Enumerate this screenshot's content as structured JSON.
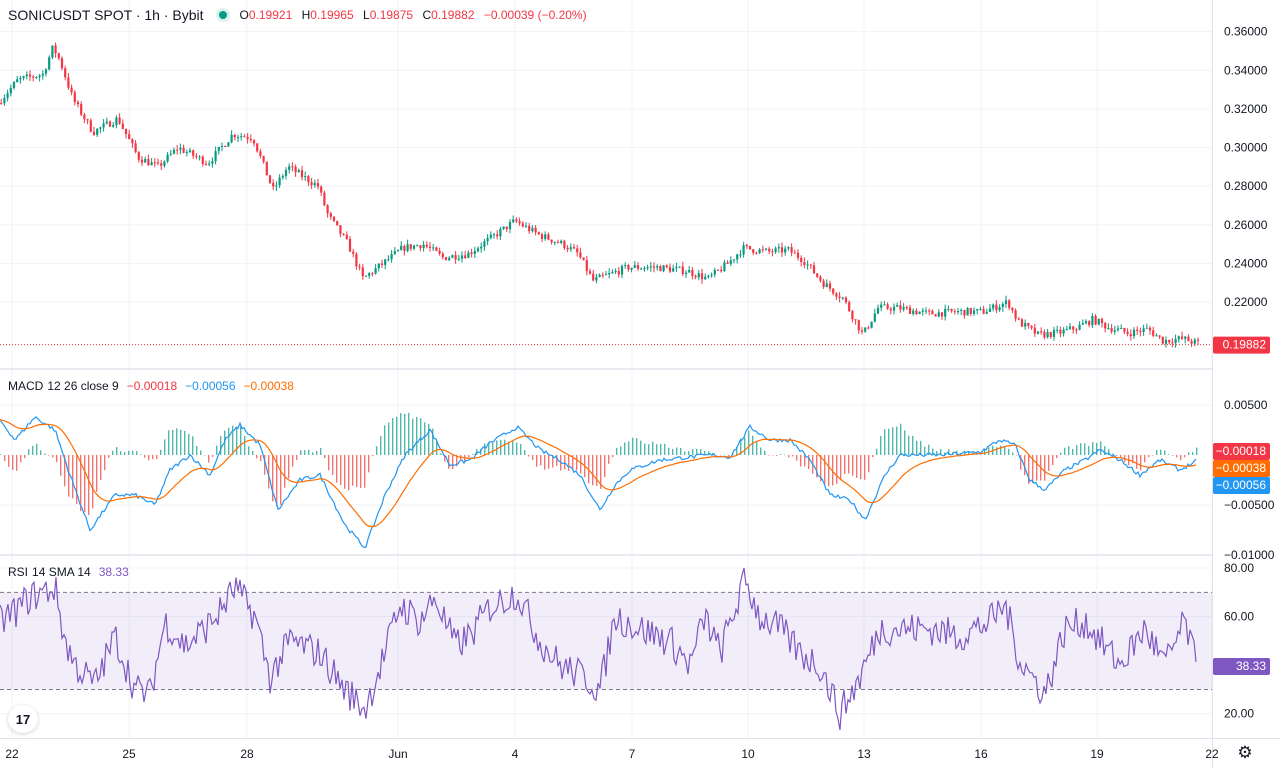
{
  "header": {
    "symbol": "SONICUSDT SPOT · 1h · Bybit",
    "open_label": "O",
    "open_value": "0.19921",
    "high_label": "H",
    "high_value": "0.19965",
    "low_label": "L",
    "low_value": "0.19875",
    "close_label": "C",
    "close_value": "0.19882",
    "change": "−0.00039 (−0.20%)"
  },
  "price_axis": {
    "ticks": [
      "0.36000",
      "0.34000",
      "0.32000",
      "0.30000",
      "0.28000",
      "0.26000",
      "0.24000",
      "0.22000"
    ],
    "last_price_label": "0.19882"
  },
  "macd": {
    "title": "MACD",
    "params": "12 26 close 9",
    "hist_value": "−0.00018",
    "macd_value": "−0.00056",
    "signal_value": "−0.00038",
    "axis_ticks": [
      "0.00500",
      "−0.00500",
      "−0.01000"
    ],
    "badges": [
      "−0.00018",
      "−0.00038",
      "−0.00056"
    ]
  },
  "rsi": {
    "title": "RSI",
    "params": "14 SMA 14",
    "value": "38.33",
    "axis_ticks": [
      "80.00",
      "60.00",
      "20.00"
    ],
    "badge": "38.33"
  },
  "time_axis": {
    "labels": [
      "22",
      "25",
      "28",
      "Jun",
      "4",
      "7",
      "10",
      "13",
      "16",
      "19",
      "22"
    ]
  },
  "colors": {
    "up": "#089981",
    "down": "#f23645",
    "macd_line": "#2196f3",
    "signal_line": "#ff6d00",
    "rsi_line": "#7e57c2",
    "rsi_band": "#7e57c2"
  },
  "icons": {
    "logo": "tradingview-logo-icon",
    "settings": "gear-icon"
  },
  "logo_text": "17",
  "chart_data": {
    "type": "candlestick",
    "price_ylim": [
      0.19,
      0.365
    ],
    "price_path": [
      [
        0,
        0.323
      ],
      [
        20,
        0.335
      ],
      [
        45,
        0.338
      ],
      [
        55,
        0.352
      ],
      [
        62,
        0.345
      ],
      [
        75,
        0.325
      ],
      [
        95,
        0.308
      ],
      [
        120,
        0.315
      ],
      [
        140,
        0.295
      ],
      [
        160,
        0.29
      ],
      [
        180,
        0.3
      ],
      [
        210,
        0.292
      ],
      [
        235,
        0.307
      ],
      [
        255,
        0.305
      ],
      [
        275,
        0.278
      ],
      [
        290,
        0.29
      ],
      [
        320,
        0.28
      ],
      [
        330,
        0.265
      ],
      [
        350,
        0.25
      ],
      [
        365,
        0.232
      ],
      [
        385,
        0.24
      ],
      [
        405,
        0.248
      ],
      [
        425,
        0.25
      ],
      [
        445,
        0.243
      ],
      [
        470,
        0.245
      ],
      [
        490,
        0.252
      ],
      [
        517,
        0.262
      ],
      [
        540,
        0.255
      ],
      [
        565,
        0.25
      ],
      [
        580,
        0.245
      ],
      [
        595,
        0.231
      ],
      [
        615,
        0.235
      ],
      [
        630,
        0.238
      ],
      [
        660,
        0.238
      ],
      [
        690,
        0.236
      ],
      [
        710,
        0.232
      ],
      [
        730,
        0.24
      ],
      [
        745,
        0.248
      ],
      [
        770,
        0.246
      ],
      [
        790,
        0.247
      ],
      [
        805,
        0.242
      ],
      [
        825,
        0.23
      ],
      [
        845,
        0.222
      ],
      [
        865,
        0.203
      ],
      [
        880,
        0.217
      ],
      [
        900,
        0.217
      ],
      [
        930,
        0.214
      ],
      [
        960,
        0.215
      ],
      [
        985,
        0.215
      ],
      [
        1010,
        0.22
      ],
      [
        1020,
        0.21
      ],
      [
        1040,
        0.203
      ],
      [
        1060,
        0.204
      ],
      [
        1080,
        0.207
      ],
      [
        1095,
        0.211
      ],
      [
        1110,
        0.207
      ],
      [
        1130,
        0.204
      ],
      [
        1150,
        0.206
      ],
      [
        1165,
        0.2
      ],
      [
        1185,
        0.201
      ],
      [
        1197,
        0.199
      ]
    ],
    "macd_ylim": [
      -0.0105,
      0.0075
    ],
    "macd_path": [
      [
        0,
        0.0035
      ],
      [
        15,
        0.0015
      ],
      [
        35,
        0.0038
      ],
      [
        55,
        0.0025
      ],
      [
        70,
        -0.002
      ],
      [
        90,
        -0.0075
      ],
      [
        115,
        -0.004
      ],
      [
        135,
        -0.004
      ],
      [
        155,
        -0.005
      ],
      [
        170,
        -0.0015
      ],
      [
        190,
        0.0
      ],
      [
        210,
        -0.002
      ],
      [
        225,
        0.0015
      ],
      [
        240,
        0.003
      ],
      [
        260,
        0.001
      ],
      [
        278,
        -0.0055
      ],
      [
        300,
        -0.0025
      ],
      [
        320,
        -0.002
      ],
      [
        345,
        -0.007
      ],
      [
        365,
        -0.0093
      ],
      [
        385,
        -0.004
      ],
      [
        405,
        0.0
      ],
      [
        430,
        0.0025
      ],
      [
        450,
        -0.001
      ],
      [
        470,
        -0.0005
      ],
      [
        490,
        0.0012
      ],
      [
        517,
        0.0028
      ],
      [
        540,
        0.0005
      ],
      [
        560,
        -0.0005
      ],
      [
        580,
        -0.002
      ],
      [
        600,
        -0.0055
      ],
      [
        615,
        -0.003
      ],
      [
        630,
        -0.0015
      ],
      [
        660,
        -0.0005
      ],
      [
        690,
        -0.0002
      ],
      [
        710,
        0.0
      ],
      [
        730,
        -0.0002
      ],
      [
        750,
        0.0028
      ],
      [
        770,
        0.0015
      ],
      [
        790,
        0.0015
      ],
      [
        810,
        -0.0005
      ],
      [
        830,
        -0.004
      ],
      [
        850,
        -0.0045
      ],
      [
        865,
        -0.0065
      ],
      [
        885,
        -0.002
      ],
      [
        900,
        0.0
      ],
      [
        940,
        0.0
      ],
      [
        980,
        0.0003
      ],
      [
        1000,
        0.0015
      ],
      [
        1015,
        0.001
      ],
      [
        1030,
        -0.0025
      ],
      [
        1045,
        -0.0035
      ],
      [
        1065,
        -0.0015
      ],
      [
        1085,
        -0.0005
      ],
      [
        1100,
        0.0005
      ],
      [
        1120,
        -0.0005
      ],
      [
        1140,
        -0.002
      ],
      [
        1160,
        -0.0005
      ],
      [
        1180,
        -0.0015
      ],
      [
        1197,
        -0.00056
      ]
    ],
    "rsi_ylim": [
      10,
      85
    ],
    "rsi_band": [
      30,
      70
    ],
    "rsi_path": [
      [
        0,
        58
      ],
      [
        15,
        62
      ],
      [
        30,
        68
      ],
      [
        55,
        72
      ],
      [
        65,
        50
      ],
      [
        75,
        40
      ],
      [
        95,
        32
      ],
      [
        115,
        52
      ],
      [
        135,
        30
      ],
      [
        150,
        28
      ],
      [
        165,
        58
      ],
      [
        185,
        48
      ],
      [
        205,
        55
      ],
      [
        220,
        62
      ],
      [
        235,
        72
      ],
      [
        255,
        60
      ],
      [
        270,
        35
      ],
      [
        290,
        50
      ],
      [
        320,
        45
      ],
      [
        345,
        30
      ],
      [
        365,
        22
      ],
      [
        385,
        45
      ],
      [
        400,
        65
      ],
      [
        420,
        58
      ],
      [
        435,
        68
      ],
      [
        455,
        48
      ],
      [
        470,
        52
      ],
      [
        490,
        64
      ],
      [
        517,
        70
      ],
      [
        540,
        50
      ],
      [
        560,
        40
      ],
      [
        585,
        35
      ],
      [
        600,
        30
      ],
      [
        615,
        60
      ],
      [
        640,
        55
      ],
      [
        670,
        50
      ],
      [
        690,
        40
      ],
      [
        705,
        60
      ],
      [
        720,
        45
      ],
      [
        745,
        75
      ],
      [
        760,
        60
      ],
      [
        780,
        55
      ],
      [
        800,
        45
      ],
      [
        820,
        40
      ],
      [
        840,
        20
      ],
      [
        860,
        35
      ],
      [
        880,
        55
      ],
      [
        900,
        55
      ],
      [
        930,
        55
      ],
      [
        960,
        52
      ],
      [
        990,
        58
      ],
      [
        1005,
        65
      ],
      [
        1020,
        42
      ],
      [
        1045,
        28
      ],
      [
        1065,
        55
      ],
      [
        1085,
        58
      ],
      [
        1100,
        50
      ],
      [
        1120,
        40
      ],
      [
        1145,
        55
      ],
      [
        1165,
        40
      ],
      [
        1185,
        58
      ],
      [
        1197,
        38
      ]
    ]
  }
}
